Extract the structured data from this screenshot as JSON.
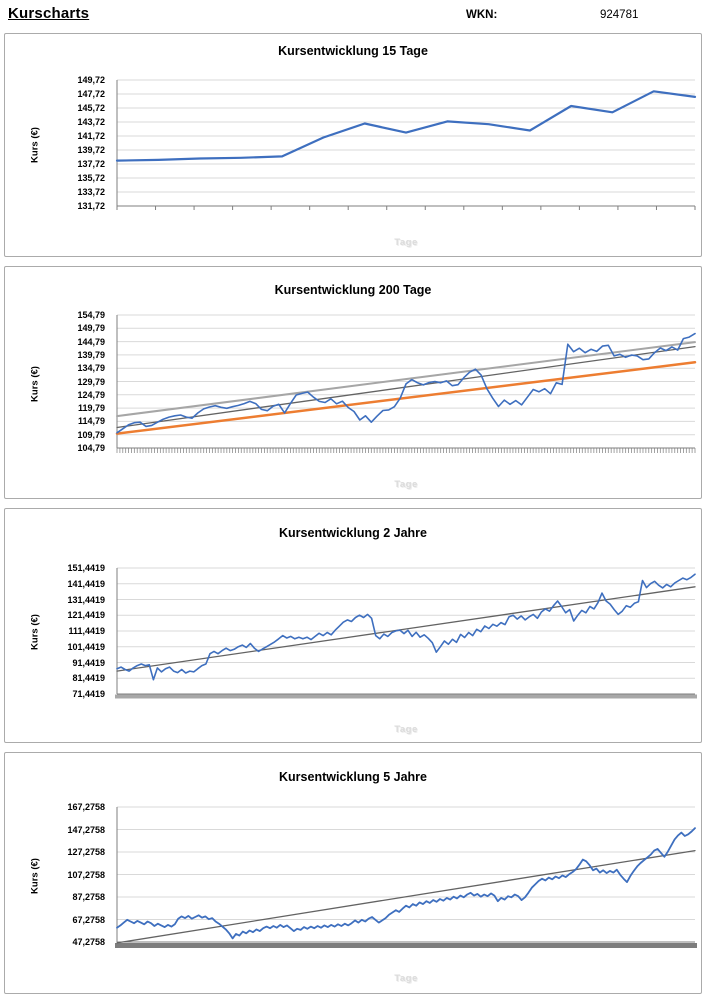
{
  "header": {
    "title": "Kurscharts",
    "wkn_label": "WKN:",
    "wkn_value": "924781"
  },
  "colors": {
    "price_blue": "#3e6fbf",
    "trend_orange": "#ed7d31",
    "trend_light_gray": "#a6a6a6",
    "trend_dark_gray": "#636363",
    "gridline": "#d9d9d9",
    "axis": "#7f7f7f"
  },
  "chart_data": [
    {
      "type": "line",
      "title": "Kursentwicklung 15 Tage",
      "ylabel": "Kurs (€)",
      "xlabel": "Tage",
      "ylim": [
        131.72,
        149.72
      ],
      "grid": true,
      "legend": "none",
      "y_labels": [
        "149,72",
        "147,72",
        "145,72",
        "143,72",
        "141,72",
        "139,72",
        "137,72",
        "135,72",
        "133,72",
        "131,72"
      ],
      "tick_style": "sparse",
      "series": [
        {
          "name": "price",
          "color": "#3e6fbf",
          "width": 2.2,
          "values": [
            138.2,
            138.3,
            138.5,
            138.6,
            138.8,
            141.5,
            143.5,
            142.2,
            143.8,
            143.4,
            142.5,
            146.0,
            145.1,
            148.1,
            147.3
          ]
        }
      ]
    },
    {
      "type": "line",
      "title": "Kursentwicklung 200 Tage",
      "ylabel": "Kurs (€)",
      "xlabel": "Tage",
      "ylim": [
        104.79,
        154.79
      ],
      "grid": true,
      "legend": "none",
      "y_labels": [
        "154,79",
        "149,79",
        "144,79",
        "139,79",
        "134,79",
        "129,79",
        "124,79",
        "119,79",
        "114,79",
        "109,79",
        "104,79"
      ],
      "tick_style": "comb",
      "series": [
        {
          "name": "trendline-light-gray",
          "color": "#a6a6a6",
          "width": 2.0,
          "values": [
            116.8,
            144.6
          ]
        },
        {
          "name": "trendline-dark-gray",
          "color": "#636363",
          "width": 1.3,
          "values": [
            112.5,
            142.9
          ]
        },
        {
          "name": "trendline-orange",
          "color": "#ed7d31",
          "width": 2.5,
          "values": [
            110.2,
            137.0
          ]
        },
        {
          "name": "price",
          "color": "#3e6fbf",
          "width": 1.6,
          "values": [
            110.5,
            112.0,
            113.5,
            114.3,
            114.5,
            112.9,
            113.3,
            114.5,
            115.6,
            116.4,
            116.9,
            117.2,
            116.4,
            116.0,
            118.0,
            119.5,
            120.2,
            120.7,
            120.1,
            119.7,
            120.3,
            120.8,
            121.5,
            122.3,
            121.5,
            119.3,
            118.8,
            120.5,
            121.2,
            118.0,
            121.5,
            124.7,
            125.3,
            125.8,
            123.9,
            122.3,
            121.9,
            123.3,
            121.4,
            122.4,
            120.0,
            118.5,
            115.3,
            116.9,
            114.5,
            116.8,
            118.9,
            119.1,
            120.3,
            123.5,
            128.9,
            130.5,
            129.3,
            128.5,
            129.4,
            129.8,
            129.3,
            130.0,
            128.2,
            128.6,
            131.2,
            133.3,
            134.4,
            132.2,
            127.1,
            123.5,
            120.4,
            122.8,
            121.2,
            122.6,
            121.0,
            123.9,
            126.8,
            125.9,
            127.1,
            125.2,
            129.3,
            128.7,
            143.8,
            141.0,
            142.3,
            140.6,
            141.9,
            141.1,
            143.1,
            143.4,
            139.4,
            140.0,
            138.9,
            139.7,
            139.4,
            138.0,
            138.3,
            140.6,
            142.4,
            141.4,
            142.8,
            141.6,
            145.9,
            146.5,
            147.8
          ]
        }
      ]
    },
    {
      "type": "line",
      "title": "Kursentwicklung 2 Jahre",
      "ylabel": "Kurs (€)",
      "xlabel": "Tage",
      "ylim": [
        71.4419,
        151.4419
      ],
      "grid": true,
      "legend": "none",
      "y_labels": [
        "151,4419",
        "141,4419",
        "131,4419",
        "121,4419",
        "111,4419",
        "101,4419",
        "91,4419",
        "81,4419",
        "71,4419"
      ],
      "tick_style": "bar-light",
      "series": [
        {
          "name": "trendline",
          "color": "#636363",
          "width": 1.3,
          "values": [
            86.0,
            139.5
          ]
        },
        {
          "name": "price",
          "color": "#3e6fbf",
          "width": 1.6,
          "values": [
            87.5,
            88.5,
            87.0,
            86.0,
            88.0,
            89.5,
            90.5,
            89.5,
            90.0,
            80.5,
            88.0,
            85.5,
            87.5,
            88.5,
            86.0,
            85.0,
            87.0,
            84.8,
            86.0,
            85.5,
            87.5,
            89.5,
            90.5,
            97.0,
            98.5,
            97.0,
            99.0,
            100.5,
            99.0,
            99.8,
            101.5,
            102.5,
            101.0,
            103.5,
            100.5,
            98.5,
            100.0,
            101.5,
            103.0,
            104.5,
            106.5,
            108.5,
            107.0,
            108.0,
            106.5,
            107.5,
            106.5,
            107.5,
            106.0,
            108.0,
            110.0,
            108.5,
            110.5,
            109.0,
            112.0,
            114.5,
            117.0,
            118.5,
            117.5,
            120.0,
            121.5,
            120.0,
            122.0,
            119.5,
            108.5,
            106.5,
            109.5,
            108.0,
            110.5,
            111.5,
            112.0,
            109.8,
            111.9,
            108.0,
            110.6,
            107.5,
            109.0,
            106.8,
            104.0,
            98.0,
            101.5,
            105.1,
            103.0,
            106.2,
            104.2,
            109.3,
            107.3,
            110.5,
            108.5,
            112.5,
            111.0,
            114.6,
            113.0,
            115.7,
            114.5,
            116.8,
            115.5,
            120.5,
            121.5,
            119.0,
            121.0,
            118.5,
            120.5,
            122.0,
            119.5,
            123.5,
            125.5,
            124.0,
            127.5,
            130.5,
            127.0,
            123.0,
            125.0,
            117.8,
            121.5,
            124.5,
            123.0,
            127.0,
            125.5,
            129.5,
            135.5,
            130.5,
            128.5,
            125.0,
            122.0,
            124.0,
            127.5,
            126.5,
            129.0,
            130.0,
            143.5,
            139.0,
            141.5,
            143.0,
            140.5,
            138.8,
            141.0,
            139.5,
            142.0,
            143.5,
            145.0,
            144.0,
            145.5,
            147.5
          ]
        }
      ]
    },
    {
      "type": "line",
      "title": "Kursentwicklung 5 Jahre",
      "ylabel": "Kurs (€)",
      "xlabel": "Tage",
      "ylim": [
        47.2758,
        167.2758
      ],
      "grid": true,
      "legend": "none",
      "y_labels": [
        "167,2758",
        "147,2758",
        "127,2758",
        "107,2758",
        "87,2758",
        "67,2758",
        "47,2758"
      ],
      "tick_style": "bar-dark",
      "series": [
        {
          "name": "trendline",
          "color": "#636363",
          "width": 1.3,
          "values": [
            46.5,
            128.5
          ]
        },
        {
          "name": "price",
          "color": "#3e6fbf",
          "width": 1.8,
          "values": [
            60.0,
            62.0,
            64.5,
            67.0,
            65.5,
            64.0,
            66.0,
            64.5,
            63.0,
            65.5,
            64.0,
            61.5,
            63.5,
            62.0,
            60.5,
            62.5,
            61.0,
            63.0,
            68.0,
            70.0,
            68.5,
            70.5,
            68.0,
            69.5,
            71.0,
            69.0,
            70.0,
            67.5,
            68.5,
            65.5,
            63.5,
            61.0,
            58.5,
            55.0,
            50.5,
            54.5,
            53.0,
            56.5,
            55.0,
            57.5,
            56.0,
            58.5,
            57.0,
            59.5,
            61.0,
            59.5,
            61.5,
            60.0,
            62.5,
            60.5,
            62.0,
            59.5,
            57.0,
            59.0,
            58.0,
            60.5,
            59.0,
            61.0,
            59.5,
            61.5,
            60.0,
            62.0,
            60.5,
            62.5,
            61.0,
            63.0,
            61.5,
            63.5,
            62.0,
            64.0,
            66.5,
            64.5,
            67.0,
            65.5,
            68.0,
            69.5,
            67.0,
            64.5,
            66.5,
            68.5,
            71.5,
            73.5,
            75.5,
            74.0,
            77.0,
            79.5,
            78.0,
            81.0,
            79.5,
            82.5,
            81.0,
            83.5,
            82.0,
            84.5,
            83.0,
            85.5,
            84.0,
            86.5,
            85.0,
            87.5,
            86.0,
            88.5,
            87.0,
            89.5,
            91.0,
            88.5,
            90.0,
            87.5,
            89.5,
            88.0,
            90.5,
            88.5,
            83.5,
            86.5,
            85.0,
            88.0,
            87.0,
            89.5,
            88.0,
            84.5,
            87.0,
            91.0,
            95.5,
            98.5,
            101.5,
            103.5,
            102.0,
            104.5,
            103.0,
            105.5,
            104.0,
            106.5,
            105.0,
            107.5,
            109.5,
            112.0,
            116.0,
            120.5,
            119.0,
            115.5,
            111.0,
            112.5,
            109.0,
            111.0,
            108.5,
            110.5,
            109.0,
            111.5,
            107.0,
            103.5,
            100.5,
            106.0,
            110.5,
            114.5,
            117.5,
            120.0,
            122.5,
            125.0,
            128.5,
            130.0,
            126.5,
            123.0,
            127.5,
            133.0,
            138.5,
            142.0,
            144.5,
            141.5,
            143.0,
            145.5,
            148.5
          ]
        }
      ]
    }
  ]
}
